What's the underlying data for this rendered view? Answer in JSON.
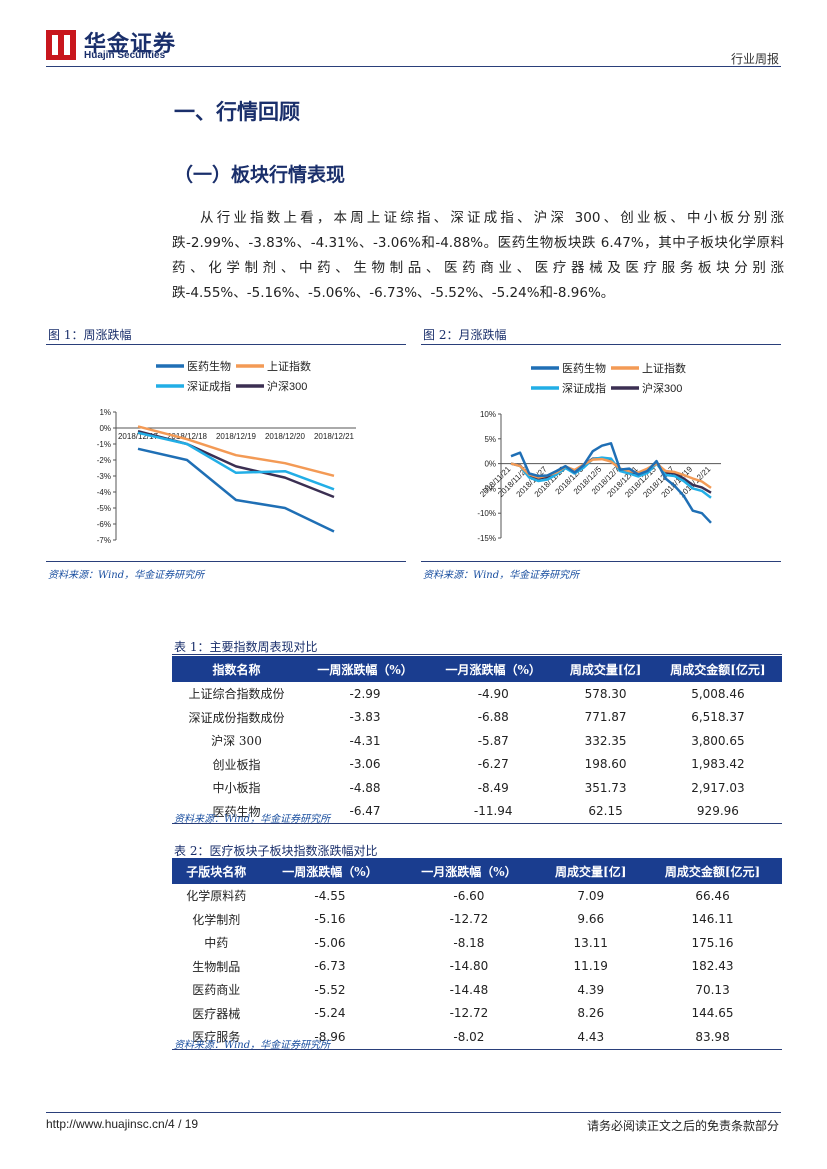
{
  "header": {
    "company_cn": "华金证券",
    "company_en": "Huajin Securities",
    "report_type": "行业周报",
    "brand_color": "#c8161d"
  },
  "section1_title": "一、行情回顾",
  "section1_sub": "（一）板块行情表现",
  "paragraph": "从行业指数上看，本周上证综指、深证成指、沪深 300、创业板、中小板分别涨跌-2.99%、-3.83%、-4.31%、-3.06%和-4.88%。医药生物板块跌 6.47%，其中子板块化学原料药、化学制剂、中药、生物制品、医药商业、医疗器械及医疗服务板块分别涨跌-4.55%、-5.16%、-5.06%、-6.73%、-5.52%、-5.24%和-8.96%。",
  "figure1": {
    "title": "图 1：周涨跌幅",
    "source": "资料来源：Wind，华金证券研究所"
  },
  "figure2": {
    "title": "图 2：月涨跌幅",
    "source": "资料来源：Wind，华金证券研究所"
  },
  "chart_data": [
    {
      "type": "line",
      "x": [
        "2018/12/17",
        "2018/12/18",
        "2018/12/19",
        "2018/12/20",
        "2018/12/21"
      ],
      "ylim": [
        -7,
        1
      ],
      "yticks": [
        "1%",
        "0%",
        "-1%",
        "-2%",
        "-3%",
        "-4%",
        "-5%",
        "-6%",
        "-7%"
      ],
      "legend_position": "top",
      "series": [
        {
          "name": "医药生物",
          "color": "#1f6fb5",
          "values": [
            -1.3,
            -2.0,
            -4.5,
            -5.0,
            -6.47
          ]
        },
        {
          "name": "上证指数",
          "color": "#f39a55",
          "values": [
            0.1,
            -0.7,
            -1.7,
            -2.2,
            -2.99
          ]
        },
        {
          "name": "深证成指",
          "color": "#22aee6",
          "values": [
            -0.3,
            -1.0,
            -2.8,
            -2.7,
            -3.83
          ]
        },
        {
          "name": "沪深300",
          "color": "#3b2f52",
          "values": [
            -0.2,
            -1.0,
            -2.4,
            -3.1,
            -4.31
          ]
        }
      ]
    },
    {
      "type": "line",
      "x": [
        "2018/11/21",
        "2018/11/22",
        "2018/11/23",
        "2018/11/26",
        "2018/11/27",
        "2018/11/28",
        "2018/11/29",
        "2018/11/30",
        "2018/12/3",
        "2018/12/4",
        "2018/12/5",
        "2018/12/6",
        "2018/12/7",
        "2018/12/10",
        "2018/12/11",
        "2018/12/12",
        "2018/12/13",
        "2018/12/14",
        "2018/12/17",
        "2018/12/18",
        "2018/12/19",
        "2018/12/20",
        "2018/12/21"
      ],
      "xticks": [
        "2018/11/21",
        "2018/11/23",
        "2018/11/27",
        "2018/11/29",
        "2018/12/3",
        "2018/12/5",
        "2018/12/7",
        "2018/12/11",
        "2018/12/13",
        "2018/12/17",
        "2018/12/19",
        "2018/12/21"
      ],
      "ylim": [
        -15,
        10
      ],
      "yticks": [
        "10%",
        "5%",
        "0%",
        "-5%",
        "-10%",
        "-15%"
      ],
      "legend_position": "top",
      "series": [
        {
          "name": "医药生物",
          "color": "#1f6fb5",
          "values": [
            1.5,
            2.2,
            -2.0,
            -2.5,
            -2.4,
            -1.5,
            -0.5,
            -1.8,
            -0.3,
            2.5,
            3.6,
            4.1,
            -1.2,
            -1.0,
            -2.2,
            -1.5,
            0.5,
            -3.0,
            -4.5,
            -6.5,
            -9.5,
            -10.0,
            -11.94
          ]
        },
        {
          "name": "上证指数",
          "color": "#f39a55",
          "values": [
            0.0,
            -0.5,
            -2.2,
            -2.8,
            -2.4,
            -1.8,
            -0.6,
            -1.3,
            -0.2,
            0.8,
            0.9,
            0.4,
            -1.0,
            -1.5,
            -1.8,
            -1.0,
            0.0,
            -1.5,
            -1.7,
            -2.3,
            -3.0,
            -3.6,
            -4.9
          ]
        },
        {
          "name": "深证成指",
          "color": "#22aee6",
          "values": [
            0.0,
            -0.5,
            -2.8,
            -3.5,
            -3.2,
            -2.2,
            -0.9,
            -2.0,
            -0.8,
            0.9,
            1.2,
            1.0,
            -1.5,
            -2.0,
            -2.6,
            -1.9,
            0.0,
            -2.3,
            -2.5,
            -3.5,
            -5.0,
            -5.5,
            -6.88
          ]
        },
        {
          "name": "沪深300",
          "color": "#3b2f52",
          "values": [
            0.0,
            -0.4,
            -2.5,
            -3.0,
            -2.7,
            -1.9,
            -0.6,
            -1.6,
            -0.3,
            1.0,
            1.1,
            0.8,
            -1.3,
            -1.7,
            -2.2,
            -1.4,
            0.2,
            -1.8,
            -2.0,
            -3.0,
            -4.3,
            -4.8,
            -5.87
          ]
        }
      ]
    }
  ],
  "table1": {
    "title": "表 1：主要指数周表现对比",
    "headers": [
      "指数名称",
      "一周涨跌幅（%）",
      "一月涨跌幅（%）",
      "周成交量[亿]",
      "周成交金额[亿元]"
    ],
    "rows": [
      [
        "上证综合指数成份",
        "-2.99",
        "-4.90",
        "578.30",
        "5,008.46"
      ],
      [
        "深证成份指数成份",
        "-3.83",
        "-6.88",
        "771.87",
        "6,518.37"
      ],
      [
        "沪深 300",
        "-4.31",
        "-5.87",
        "332.35",
        "3,800.65"
      ],
      [
        "创业板指",
        "-3.06",
        "-6.27",
        "198.60",
        "1,983.42"
      ],
      [
        "中小板指",
        "-4.88",
        "-8.49",
        "351.73",
        "2,917.03"
      ],
      [
        "医药生物",
        "-6.47",
        "-11.94",
        "62.15",
        "929.96"
      ]
    ],
    "source": "资料来源：Wind，华金证券研究所"
  },
  "table2": {
    "title": "表 2：医疗板块子板块指数涨跌幅对比",
    "headers": [
      "子版块名称",
      "一周涨跌幅（%）",
      "一月涨跌幅（%）",
      "周成交量[亿]",
      "周成交金额[亿元]"
    ],
    "rows": [
      [
        "化学原料药",
        "-4.55",
        "-6.60",
        "7.09",
        "66.46"
      ],
      [
        "化学制剂",
        "-5.16",
        "-12.72",
        "9.66",
        "146.11"
      ],
      [
        "中药",
        "-5.06",
        "-8.18",
        "13.11",
        "175.16"
      ],
      [
        "生物制品",
        "-6.73",
        "-14.80",
        "11.19",
        "182.43"
      ],
      [
        "医药商业",
        "-5.52",
        "-14.48",
        "4.39",
        "70.13"
      ],
      [
        "医疗器械",
        "-5.24",
        "-12.72",
        "8.26",
        "144.65"
      ],
      [
        "医疗服务",
        "-8.96",
        "-8.02",
        "4.43",
        "83.98"
      ]
    ],
    "source": "资料来源：Wind，华金证券研究所"
  },
  "footer": {
    "url_page": "http://www.huajinsc.cn/4 / 19",
    "disclaimer": "请务必阅读正文之后的免责条款部分"
  }
}
